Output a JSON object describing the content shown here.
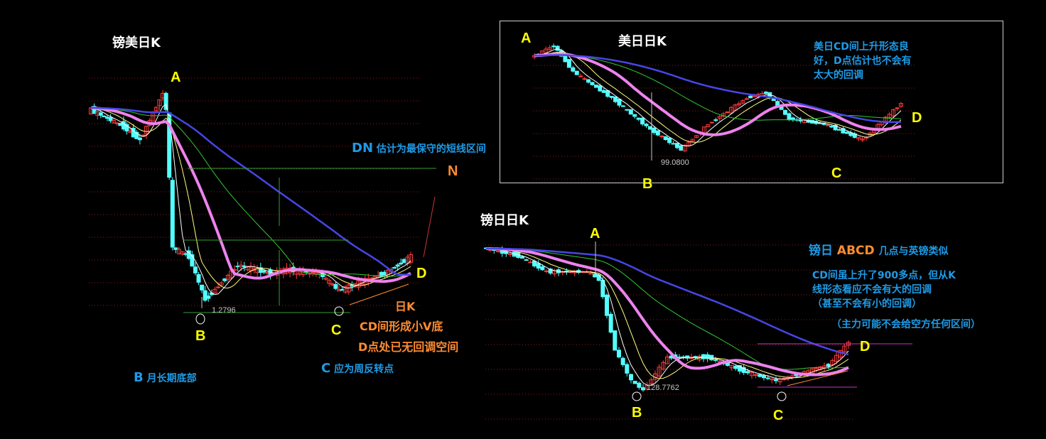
{
  "colors": {
    "background": "#000000",
    "up_candle": "#ff3c3c",
    "down_candle": "#54ffff",
    "ma5": "#ffffff",
    "ma10": "#ffff80",
    "ma20": "#ee82ee",
    "ma60": "#32c832",
    "ma120": "#4646e6",
    "grid": "#8b1a1a",
    "annotation_blue": "#1e9be6",
    "annotation_orange": "#ff8c32",
    "point_label": "#ffff00"
  },
  "chart_data": [
    {
      "type": "candlestick",
      "title": "镑美日K",
      "key_prices": [
        [
          0,
          1.5
        ],
        [
          10,
          1.48
        ],
        [
          15,
          1.465
        ],
        [
          22,
          1.52
        ],
        [
          23,
          1.5
        ],
        [
          25,
          1.34
        ],
        [
          30,
          1.33
        ],
        [
          35,
          1.2796
        ],
        [
          40,
          1.3
        ],
        [
          45,
          1.32
        ],
        [
          55,
          1.31
        ],
        [
          60,
          1.315
        ],
        [
          70,
          1.31
        ],
        [
          76,
          1.29
        ],
        [
          82,
          1.3
        ],
        [
          90,
          1.31
        ],
        [
          98,
          1.33
        ]
      ],
      "low_label": "1.2796",
      "points": {
        "A": "A",
        "B": "B",
        "C": "C",
        "D": "D",
        "N": "N"
      }
    },
    {
      "type": "candlestick",
      "title": "美日日K",
      "key_prices": [
        [
          0,
          108
        ],
        [
          5,
          109
        ],
        [
          10,
          106.5
        ],
        [
          20,
          104
        ],
        [
          30,
          101
        ],
        [
          38,
          99.08
        ],
        [
          45,
          101.5
        ],
        [
          55,
          104
        ],
        [
          60,
          104.5
        ],
        [
          66,
          102
        ],
        [
          75,
          101.5
        ],
        [
          85,
          100
        ],
        [
          95,
          103.5
        ]
      ],
      "low_label": "99.0800",
      "points": {
        "A": "A",
        "B": "B",
        "C": "C",
        "D": "D"
      }
    },
    {
      "type": "candlestick",
      "title": "镑日日K",
      "key_prices": [
        [
          0,
          147
        ],
        [
          8,
          146
        ],
        [
          15,
          144
        ],
        [
          25,
          144
        ],
        [
          28,
          143
        ],
        [
          32,
          134
        ],
        [
          36,
          130
        ],
        [
          39,
          128.7762
        ],
        [
          45,
          133
        ],
        [
          55,
          133
        ],
        [
          65,
          131
        ],
        [
          72,
          130
        ],
        [
          85,
          132
        ],
        [
          90,
          135
        ]
      ],
      "low_label": "128.7762",
      "points": {
        "A": "A",
        "B": "B",
        "C": "C",
        "D": "D"
      }
    }
  ],
  "annotations": {
    "dn": "DN",
    "dn_text": "估计为最保守的短线区间",
    "rik": "日K",
    "cd_v": "CD间形成小V底",
    "d_no_space": "D点处已无回调空间",
    "c_letter": "C",
    "c_text": "应为周反转点",
    "b_letter": "B",
    "b_text": "月长期底部",
    "usdjpy_line1": "美日CD间上升形态良",
    "usdjpy_line2": "好，D点估计也不会有",
    "usdjpy_line3": "太大的回调",
    "gbpjpy_prefix": "镑日",
    "gbpjpy_abcd": "ABCD",
    "gbpjpy_suffix": "几点与英镑类似",
    "gbpjpy_l1": "CD间虽上升了900多点，但从K",
    "gbpjpy_l2": "线形态看应不会有大的回调",
    "gbpjpy_l3": "（甚至不会有小的回调）",
    "gbpjpy_l4": "（主力可能不会给空方任何区间）"
  }
}
